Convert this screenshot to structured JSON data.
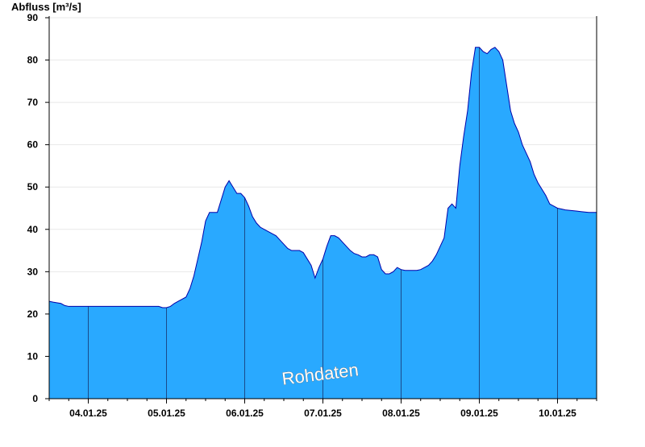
{
  "chart_data": {
    "type": "area",
    "title": "",
    "ylabel": "Abfluss [m³/s]",
    "xlabel": "",
    "watermark": "Rohdaten",
    "ylim": [
      0,
      90
    ],
    "xlim_days": [
      3.5,
      10.5
    ],
    "yticks": [
      0,
      10,
      20,
      30,
      40,
      50,
      60,
      70,
      80,
      90
    ],
    "xtick_labels": [
      "04.01.25",
      "05.01.25",
      "06.01.25",
      "07.01.25",
      "08.01.25",
      "09.01.25",
      "10.01.25"
    ],
    "colors": {
      "fill": "#29a9ff",
      "line": "#0000aa",
      "grid": "#e8e8e8",
      "axis": "#000000",
      "day_line": "#1a4a8a"
    },
    "grid": true,
    "series": [
      {
        "x": [
          3.5,
          3.55,
          3.65,
          3.7,
          3.75,
          3.85,
          4.0,
          4.2,
          4.4,
          4.5,
          4.6,
          4.7,
          4.9,
          4.95,
          5.0,
          5.05,
          5.1,
          5.15,
          5.25,
          5.3,
          5.35,
          5.4,
          5.45,
          5.5,
          5.55,
          5.6,
          5.65,
          5.7,
          5.75,
          5.8,
          5.85,
          5.9,
          5.95,
          6.0,
          6.05,
          6.1,
          6.15,
          6.2,
          6.25,
          6.3,
          6.35,
          6.4,
          6.45,
          6.5,
          6.55,
          6.6,
          6.65,
          6.7,
          6.75,
          6.8,
          6.85,
          6.9,
          6.95,
          7.0,
          7.05,
          7.1,
          7.15,
          7.2,
          7.25,
          7.3,
          7.35,
          7.4,
          7.45,
          7.5,
          7.55,
          7.6,
          7.65,
          7.7,
          7.75,
          7.8,
          7.85,
          7.9,
          7.95,
          8.0,
          8.05,
          8.1,
          8.15,
          8.2,
          8.25,
          8.3,
          8.35,
          8.4,
          8.45,
          8.5,
          8.55,
          8.6,
          8.65,
          8.7,
          8.75,
          8.8,
          8.85,
          8.9,
          8.95,
          9.0,
          9.05,
          9.1,
          9.15,
          9.2,
          9.25,
          9.3,
          9.35,
          9.4,
          9.45,
          9.5,
          9.55,
          9.6,
          9.65,
          9.7,
          9.75,
          9.8,
          9.85,
          9.9,
          9.95,
          10.0,
          10.05,
          10.1,
          10.15,
          10.2,
          10.25,
          10.3,
          10.35,
          10.4,
          10.45,
          10.5
        ],
        "y": [
          23.0,
          22.8,
          22.5,
          22.0,
          21.8,
          21.8,
          21.8,
          21.8,
          21.8,
          21.8,
          21.8,
          21.8,
          21.8,
          21.5,
          21.5,
          21.8,
          22.5,
          23.0,
          24.0,
          26.0,
          29.0,
          33.0,
          37.0,
          42.0,
          44.0,
          44.0,
          44.0,
          47.0,
          50.0,
          51.5,
          50.0,
          48.5,
          48.5,
          47.5,
          45.5,
          43.0,
          41.5,
          40.5,
          40.0,
          39.5,
          39.0,
          38.5,
          37.5,
          36.5,
          35.5,
          35.0,
          35.0,
          35.0,
          34.5,
          33.0,
          31.5,
          28.5,
          31.0,
          33.0,
          36.0,
          38.5,
          38.5,
          38.0,
          37.0,
          36.0,
          35.0,
          34.3,
          34.0,
          33.5,
          33.5,
          34.0,
          34.0,
          33.5,
          30.5,
          29.5,
          29.5,
          30.0,
          31.0,
          30.5,
          30.3,
          30.3,
          30.3,
          30.3,
          30.5,
          31.0,
          31.5,
          32.5,
          34.0,
          36.0,
          38.0,
          45.0,
          46.0,
          45.0,
          55.0,
          62.0,
          68.0,
          77.0,
          83.0,
          83.0,
          82.0,
          81.5,
          82.5,
          83.0,
          82.0,
          80.0,
          74.0,
          68.0,
          65.0,
          63.0,
          60.0,
          58.0,
          56.0,
          53.0,
          51.0,
          49.5,
          48.0,
          46.0,
          45.5,
          45.0,
          44.8,
          44.6,
          44.5,
          44.4,
          44.3,
          44.2,
          44.1,
          44.0,
          44.0,
          44.0
        ]
      }
    ]
  }
}
